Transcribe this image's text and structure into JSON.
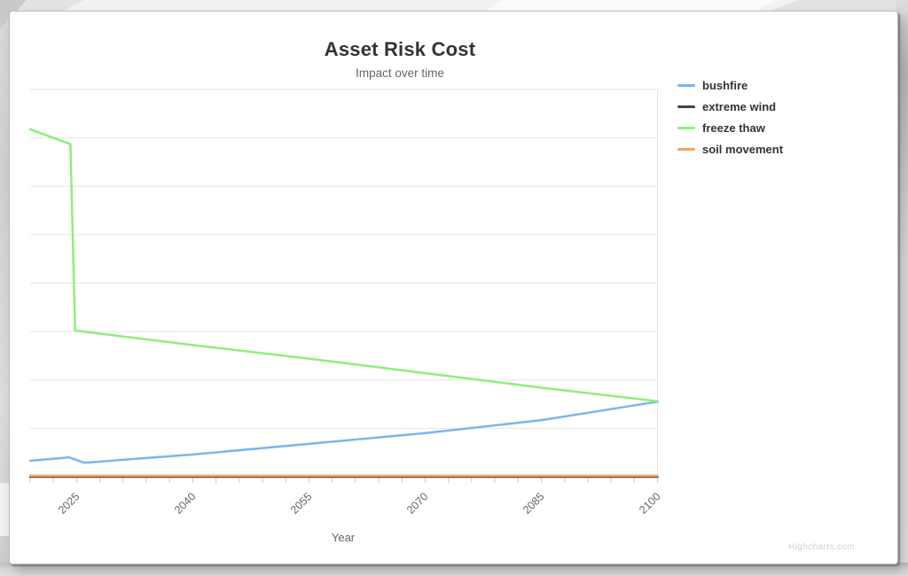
{
  "page": {
    "watermark": "Highcharts.com"
  },
  "chart_data": {
    "type": "line",
    "title": "Asset Risk Cost",
    "subtitle": "Impact over time",
    "xlabel": "Year",
    "ylabel": "",
    "xlim": [
      2019,
      2100
    ],
    "ylim": [
      0,
      8
    ],
    "x_labeled_ticks": [
      2025,
      2040,
      2055,
      2070,
      2085,
      2100
    ],
    "x_minor_tick_interval_years": 3,
    "y_axis_labels_visible": false,
    "grid": "horizontal",
    "legend_position": "right-top",
    "series": [
      {
        "name": "bushfire",
        "color": "#7cb5ec",
        "points": [
          [
            2019,
            0.33
          ],
          [
            2024,
            0.4
          ],
          [
            2026,
            0.29
          ],
          [
            2040,
            0.46
          ],
          [
            2055,
            0.68
          ],
          [
            2070,
            0.9
          ],
          [
            2085,
            1.17
          ],
          [
            2100,
            1.55
          ]
        ]
      },
      {
        "name": "extreme wind",
        "color": "#434348",
        "points": [
          [
            2019,
            0.0
          ],
          [
            2100,
            0.0
          ]
        ]
      },
      {
        "name": "freeze thaw",
        "color": "#90ed7d",
        "points": [
          [
            2019,
            7.18
          ],
          [
            2024.2,
            6.87
          ],
          [
            2024.8,
            3.02
          ],
          [
            2040,
            2.72
          ],
          [
            2055,
            2.44
          ],
          [
            2070,
            2.14
          ],
          [
            2085,
            1.84
          ],
          [
            2100,
            1.56
          ]
        ]
      },
      {
        "name": "soil movement",
        "color": "#f7a35c",
        "points": [
          [
            2019,
            0.02
          ],
          [
            2100,
            0.02
          ]
        ]
      }
    ]
  }
}
